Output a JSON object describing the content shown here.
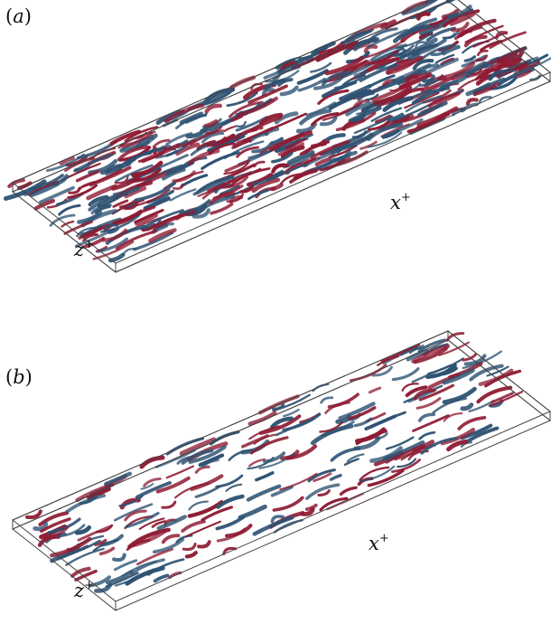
{
  "panels": [
    {
      "label_open": "(",
      "label_letter": "a",
      "label_close": ")",
      "x_axis": "x",
      "z_axis": "z",
      "superscript": "+",
      "density": 1.0
    },
    {
      "label_open": "(",
      "label_letter": "b",
      "label_close": ")",
      "x_axis": "x",
      "z_axis": "z",
      "superscript": "+",
      "density": 0.45
    }
  ],
  "colors": {
    "red": "#8e1b33",
    "blue": "#2e5272",
    "frame": "#444444"
  }
}
